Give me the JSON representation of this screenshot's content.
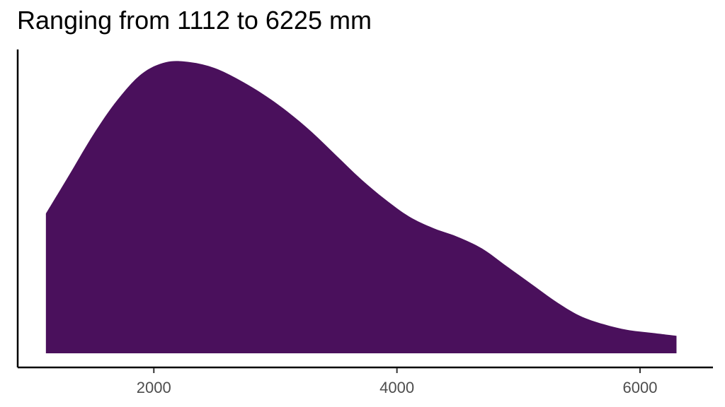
{
  "chart_data": {
    "type": "area",
    "title": "Ranging from 1112 to 6225 mm",
    "xlabel": "",
    "ylabel": "",
    "xlim": [
      880,
      6600
    ],
    "ylim": [
      0,
      1.0
    ],
    "x_ticks": [
      2000,
      4000,
      6000
    ],
    "x_tick_labels": [
      "2000",
      "4000",
      "6000"
    ],
    "grid": false,
    "legend": "none",
    "fill_color": "#4A105C",
    "series": [
      {
        "x": [
          1112,
          1300,
          1500,
          1700,
          1900,
          2100,
          2300,
          2500,
          2700,
          2900,
          3100,
          3300,
          3500,
          3700,
          3900,
          4100,
          4300,
          4500,
          4700,
          4900,
          5100,
          5300,
          5500,
          5700,
          5900,
          6100,
          6300
        ],
        "y": [
          0.48,
          0.61,
          0.75,
          0.87,
          0.96,
          1.0,
          1.0,
          0.98,
          0.94,
          0.89,
          0.83,
          0.76,
          0.68,
          0.6,
          0.53,
          0.47,
          0.43,
          0.4,
          0.36,
          0.3,
          0.24,
          0.18,
          0.13,
          0.1,
          0.08,
          0.07,
          0.06
        ]
      }
    ]
  }
}
